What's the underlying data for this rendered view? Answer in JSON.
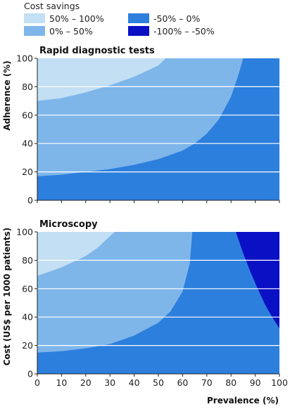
{
  "legend": {
    "title": "Cost savings",
    "items": [
      {
        "label": "50% – 100%",
        "color": "#c2dff4"
      },
      {
        "label": "0% – 50%",
        "color": "#7fb6ea"
      },
      {
        "label": "-50% – 0%",
        "color": "#2d7fdd"
      },
      {
        "label": "-100% – -50%",
        "color": "#0a10c4"
      }
    ]
  },
  "chart_data": [
    {
      "type": "area",
      "title": "Rapid diagnostic tests",
      "xlabel": "",
      "ylabel": "Adherence (%)",
      "xlim": [
        0,
        100
      ],
      "ylim": [
        0,
        100
      ],
      "x_ticks": [
        0,
        10,
        20,
        30,
        40,
        50,
        60,
        70,
        80,
        90,
        100
      ],
      "y_ticks": [
        0,
        20,
        40,
        60,
        80,
        100
      ],
      "grid": true,
      "boundaries": [
        {
          "name": "50% – 100% | 0% – 50%",
          "points": [
            [
              0,
              70
            ],
            [
              10,
              72
            ],
            [
              20,
              76
            ],
            [
              30,
              81
            ],
            [
              40,
              87
            ],
            [
              50,
              95
            ],
            [
              53,
              100
            ]
          ]
        },
        {
          "name": "0% – 50% | -50% – 0%",
          "points": [
            [
              0,
              17
            ],
            [
              10,
              18
            ],
            [
              20,
              20
            ],
            [
              30,
              22
            ],
            [
              40,
              25
            ],
            [
              50,
              29
            ],
            [
              60,
              35
            ],
            [
              65,
              40
            ],
            [
              70,
              47
            ],
            [
              75,
              57
            ],
            [
              80,
              73
            ],
            [
              83,
              88
            ],
            [
              85,
              100
            ]
          ]
        }
      ]
    },
    {
      "type": "area",
      "title": "Microscopy",
      "xlabel": "Prevalence (%)",
      "ylabel": "Cost (US$ per 1000 patients)",
      "xlim": [
        0,
        100
      ],
      "ylim": [
        0,
        100
      ],
      "x_ticks": [
        0,
        10,
        20,
        30,
        40,
        50,
        60,
        70,
        80,
        90,
        100
      ],
      "y_ticks": [
        0,
        20,
        40,
        60,
        80,
        100
      ],
      "grid": true,
      "boundaries": [
        {
          "name": "50% – 100% | 0% – 50%",
          "points": [
            [
              0,
              69
            ],
            [
              10,
              75
            ],
            [
              20,
              83
            ],
            [
              25,
              89
            ],
            [
              30,
              97
            ],
            [
              32,
              100
            ]
          ]
        },
        {
          "name": "0% – 50% | -50% – 0%",
          "points": [
            [
              0,
              15
            ],
            [
              10,
              16
            ],
            [
              20,
              18
            ],
            [
              30,
              21
            ],
            [
              40,
              27
            ],
            [
              50,
              36
            ],
            [
              55,
              44
            ],
            [
              60,
              58
            ],
            [
              63,
              78
            ],
            [
              64,
              100
            ]
          ]
        },
        {
          "name": "-50% – 0% | -100% – -50%",
          "points": [
            [
              82,
              100
            ],
            [
              85,
              85
            ],
            [
              88,
              72
            ],
            [
              91,
              60
            ],
            [
              94,
              49
            ],
            [
              97,
              40
            ],
            [
              100,
              32
            ]
          ]
        }
      ]
    }
  ]
}
